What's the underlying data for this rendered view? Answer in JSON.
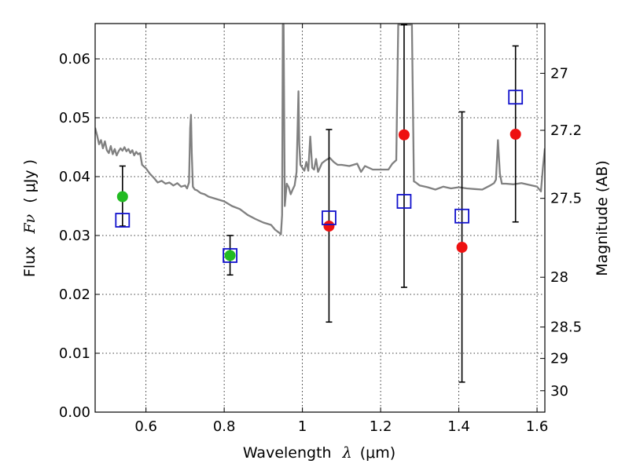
{
  "chart_data": {
    "type": "scatter",
    "xlabel": {
      "prefix": "Wavelength",
      "symbol": "λ",
      "unit": "(μm)"
    },
    "ylabel": {
      "prefix": "Flux",
      "symbol": "Fν",
      "unit": "( μJy )"
    },
    "y2label": "Magnitude (AB)",
    "xlim": [
      0.47,
      1.62
    ],
    "ylim": [
      0.0,
      0.066
    ],
    "xticks": [
      0.6,
      0.8,
      1.0,
      1.2,
      1.4,
      1.6
    ],
    "xtick_labels": [
      "0.6",
      "0.8",
      "1",
      "1.2",
      "1.4",
      "1.6"
    ],
    "yticks": [
      0.0,
      0.01,
      0.02,
      0.03,
      0.04,
      0.05,
      0.06
    ],
    "ytick_labels": [
      "0.00",
      "0.01",
      "0.02",
      "0.03",
      "0.04",
      "0.05",
      "0.06"
    ],
    "y2ticks": [
      27,
      27.2,
      27.5,
      28,
      28.5,
      29,
      30
    ],
    "y2tick_labels": [
      "27",
      "27.2",
      "27.5",
      "28",
      "28.5",
      "29",
      "30"
    ],
    "grid": true,
    "colors": {
      "spectrum": "#808080",
      "green": "#22bb22",
      "red": "#ee1111",
      "model": "#1111cc",
      "errorbar": "#000000"
    },
    "spectrum": {
      "x": [
        0.47,
        0.475,
        0.48,
        0.485,
        0.49,
        0.495,
        0.5,
        0.505,
        0.51,
        0.515,
        0.52,
        0.525,
        0.53,
        0.535,
        0.54,
        0.545,
        0.55,
        0.555,
        0.56,
        0.565,
        0.57,
        0.575,
        0.58,
        0.585,
        0.59,
        0.6,
        0.61,
        0.62,
        0.63,
        0.64,
        0.65,
        0.66,
        0.67,
        0.68,
        0.69,
        0.7,
        0.705,
        0.71,
        0.713,
        0.715,
        0.717,
        0.72,
        0.725,
        0.73,
        0.74,
        0.75,
        0.76,
        0.78,
        0.8,
        0.82,
        0.84,
        0.86,
        0.88,
        0.9,
        0.92,
        0.93,
        0.94,
        0.945,
        0.948,
        0.95,
        0.952,
        0.955,
        0.96,
        0.965,
        0.97,
        0.975,
        0.98,
        0.985,
        0.99,
        0.992,
        0.995,
        1.0,
        1.005,
        1.01,
        1.015,
        1.02,
        1.025,
        1.03,
        1.035,
        1.04,
        1.05,
        1.06,
        1.07,
        1.08,
        1.09,
        1.1,
        1.12,
        1.14,
        1.15,
        1.16,
        1.18,
        1.2,
        1.22,
        1.23,
        1.24,
        1.245,
        1.25,
        1.255,
        1.26,
        1.265,
        1.27,
        1.275,
        1.28,
        1.285,
        1.29,
        1.3,
        1.32,
        1.34,
        1.36,
        1.38,
        1.4,
        1.42,
        1.44,
        1.46,
        1.48,
        1.49,
        1.495,
        1.5,
        1.505,
        1.51,
        1.52,
        1.54,
        1.56,
        1.58,
        1.6,
        1.61,
        1.615,
        1.62
      ],
      "y": [
        0.0483,
        0.047,
        0.0455,
        0.0462,
        0.0448,
        0.046,
        0.0445,
        0.044,
        0.0452,
        0.0438,
        0.0447,
        0.0436,
        0.0443,
        0.0448,
        0.0444,
        0.045,
        0.0443,
        0.0447,
        0.044,
        0.0445,
        0.0436,
        0.0442,
        0.0438,
        0.044,
        0.042,
        0.0414,
        0.0405,
        0.0398,
        0.039,
        0.0393,
        0.0388,
        0.039,
        0.0385,
        0.0389,
        0.0383,
        0.0385,
        0.038,
        0.039,
        0.0483,
        0.0505,
        0.044,
        0.0383,
        0.0378,
        0.0377,
        0.0372,
        0.037,
        0.0366,
        0.0362,
        0.0358,
        0.035,
        0.0345,
        0.0335,
        0.0328,
        0.0322,
        0.0318,
        0.031,
        0.0305,
        0.0302,
        0.0335,
        0.0658,
        0.0658,
        0.035,
        0.0388,
        0.0382,
        0.037,
        0.0378,
        0.0385,
        0.0408,
        0.0545,
        0.0455,
        0.042,
        0.0415,
        0.041,
        0.0425,
        0.041,
        0.0468,
        0.0415,
        0.0412,
        0.043,
        0.0408,
        0.0423,
        0.0428,
        0.0432,
        0.0425,
        0.042,
        0.042,
        0.0418,
        0.0422,
        0.0408,
        0.0418,
        0.0412,
        0.0412,
        0.0412,
        0.0422,
        0.0428,
        0.0658,
        0.0658,
        0.0658,
        0.0658,
        0.0658,
        0.0658,
        0.0658,
        0.0658,
        0.0392,
        0.039,
        0.0385,
        0.0382,
        0.0378,
        0.0383,
        0.038,
        0.0382,
        0.038,
        0.0379,
        0.0378,
        0.0385,
        0.0389,
        0.0395,
        0.0462,
        0.0405,
        0.0388,
        0.0388,
        0.0387,
        0.0389,
        0.0386,
        0.0383,
        0.0375,
        0.0415,
        0.0448
      ]
    },
    "points_green": {
      "x": [
        0.54,
        0.815
      ],
      "y": [
        0.0366,
        0.0266
      ]
    },
    "points_red": {
      "x": [
        1.068,
        1.26,
        1.408,
        1.545
      ],
      "y": [
        0.0316,
        0.0471,
        0.028,
        0.0472
      ]
    },
    "points_model": {
      "x": [
        0.54,
        0.815,
        1.068,
        1.26,
        1.408,
        1.545
      ],
      "y": [
        0.0326,
        0.0266,
        0.033,
        0.0358,
        0.0333,
        0.0535
      ]
    },
    "errorbars": [
      {
        "x": 0.54,
        "lo": 0.0316,
        "hi": 0.0418
      },
      {
        "x": 0.815,
        "lo": 0.0233,
        "hi": 0.03
      },
      {
        "x": 1.068,
        "lo": 0.0153,
        "hi": 0.048
      },
      {
        "x": 1.26,
        "lo": 0.0212,
        "hi": 0.0658
      },
      {
        "x": 1.408,
        "lo": 0.0051,
        "hi": 0.051
      },
      {
        "x": 1.545,
        "lo": 0.0323,
        "hi": 0.0622
      }
    ]
  }
}
